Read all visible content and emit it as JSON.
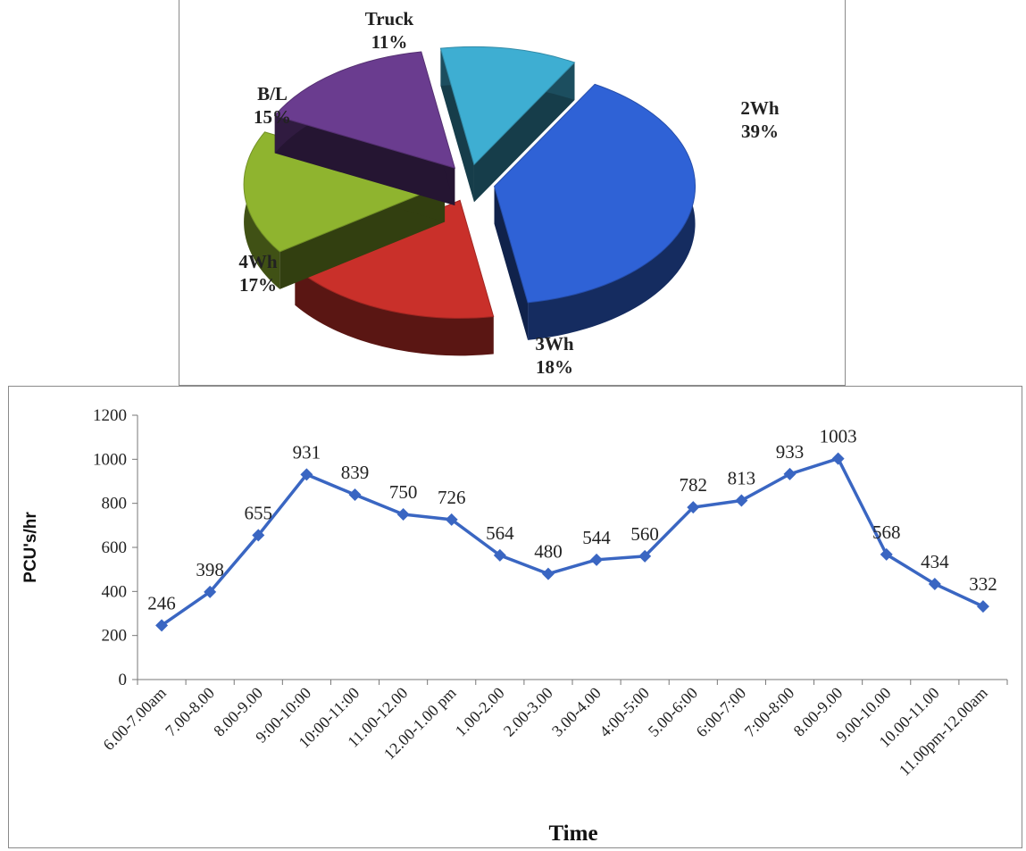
{
  "chart_data": [
    {
      "type": "pie",
      "categories": [
        "2Wh",
        "3Wh",
        "4Wh",
        "B/L",
        "Truck"
      ],
      "values": [
        39,
        18,
        17,
        15,
        11
      ],
      "labels": [
        "39%",
        "18%",
        "17%",
        "15%",
        "11%"
      ],
      "colors": [
        "#2f62d6",
        "#c9302a",
        "#8fb42f",
        "#6a3c8f",
        "#3eaed2"
      ],
      "style": "3d-exploded"
    },
    {
      "type": "line",
      "xlabel": "Time",
      "ylabel": "PCU's/hr",
      "ylim": [
        0,
        1200
      ],
      "yticks": [
        0,
        200,
        400,
        600,
        800,
        1000,
        1200
      ],
      "grid": false,
      "color": "#3a66c2",
      "marker": "diamond",
      "categories": [
        "6.00-7.00am",
        "7.00-8.00",
        "8.00-9.00",
        "9:00-10:00",
        "10:00-11:00",
        "11.00-12.00",
        "12.00-1.00 pm",
        "1.00-2.00",
        "2.00-3.00",
        "3.00-4.00",
        "4:00-5:00",
        "5.00-6:00",
        "6:00-7:00",
        "7:00-8:00",
        "8.00-9.00",
        "9.00-10.00",
        "10.00-11.00",
        "11.00pm-12.00am"
      ],
      "values": [
        246,
        398,
        655,
        931,
        839,
        750,
        726,
        564,
        480,
        544,
        560,
        782,
        813,
        933,
        1003,
        568,
        434,
        332
      ]
    }
  ]
}
